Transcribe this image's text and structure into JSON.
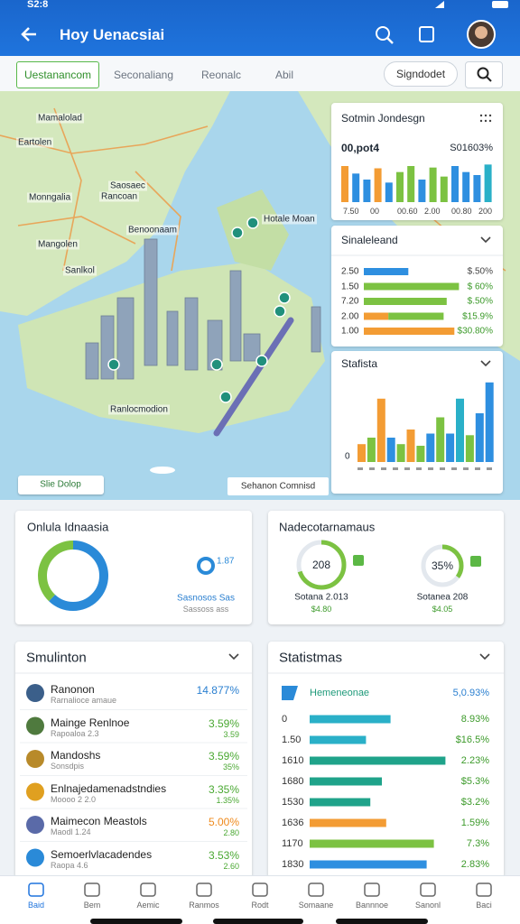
{
  "status_bar": {
    "time": "S2:8"
  },
  "app_bar": {
    "title": "Hoy Uenacsiai"
  },
  "tabs": {
    "items": [
      "Uestanancom",
      "Seconaliang",
      "Reonalc",
      "Abil"
    ],
    "active": 0,
    "button": "Signdodet"
  },
  "map": {
    "labels": [
      "Mamalolad",
      "Eartolen",
      "Monngalia",
      "Rancoan",
      "Mangolen",
      "Hotale Moan",
      "Benoonaam",
      "Ranlocmodion",
      "Sanlkol",
      "Saosaec"
    ],
    "zoom_chip": "Slie Dolop",
    "footer_chip": "Sehanon Comnisd"
  },
  "summary_panel": {
    "title": "Sotmin Jondesgn",
    "value_left": "00,pot4",
    "value_right": "S01603%",
    "ylim": [
      0,
      60
    ],
    "bars": [
      48,
      38,
      30,
      45,
      26,
      40,
      48,
      30,
      46,
      34,
      48,
      40,
      36,
      50
    ],
    "colors": [
      "#f39c34",
      "#2e8fe0",
      "#2e8fe0",
      "#f39c34",
      "#2e8fe0",
      "#7cc242",
      "#7cc242",
      "#2e8fe0",
      "#7cc242",
      "#7cc242",
      "#2e8fe0",
      "#2e8fe0",
      "#2e8fe0",
      "#2ab0c8"
    ],
    "tick_labels": [
      "7.50",
      "00",
      "00.60",
      "2.00",
      "00.80",
      "200"
    ]
  },
  "breakdown_panel": {
    "title": "Sinaleleand",
    "xlim": [
      0,
      100
    ],
    "rows": [
      {
        "label": "2.50",
        "value": "$.50%",
        "segments": [
          {
            "value": 29,
            "color": "#2e8fe0"
          }
        ]
      },
      {
        "label": "1.50",
        "value": "$ 60%",
        "segments": [
          {
            "value": 62,
            "color": "#7cc242"
          }
        ]
      },
      {
        "label": "7.20",
        "value": "$.50%",
        "segments": [
          {
            "value": 54,
            "color": "#7cc242"
          }
        ]
      },
      {
        "label": "2.00",
        "value": "$15.9%",
        "segments": [
          {
            "value": 16,
            "color": "#f39c34"
          },
          {
            "value": 36,
            "color": "#7cc242"
          }
        ]
      },
      {
        "label": "1.00",
        "value": "$30.80%",
        "segments": [
          {
            "value": 59,
            "color": "#f39c34"
          }
        ]
      }
    ]
  },
  "stats_panel": {
    "title": "Stafista",
    "y_label": "0",
    "ylim": [
      0,
      100
    ],
    "bars": [
      22,
      30,
      78,
      30,
      22,
      40,
      20,
      35,
      55,
      35,
      78,
      33,
      60,
      98
    ],
    "colors": [
      "#f39c34",
      "#7cc242",
      "#f39c34",
      "#2e8fe0",
      "#7cc242",
      "#f39c34",
      "#7cc242",
      "#2e8fe0",
      "#7cc242",
      "#2e8fe0",
      "#2ab0c8",
      "#7cc242",
      "#2e8fe0",
      "#2e8fe0"
    ]
  },
  "overview_card": {
    "title": "Onlula Idnaasia",
    "donut": [
      {
        "value": 62,
        "color": "#2a8ad8"
      },
      {
        "value": 38,
        "color": "#7cc242"
      }
    ],
    "badge": "1.87",
    "caption": "Sasnosos Sas",
    "sub_caption": "Sassoss ass"
  },
  "gauges_card": {
    "title": "Nadecotarnamaus",
    "gauges": [
      {
        "value": "208",
        "percent": 70,
        "color": "#7cc242",
        "caption": "Sotana 2.013",
        "amount": "$4.80"
      },
      {
        "value": "35%",
        "percent": 35,
        "color": "#7cc242",
        "caption": "Sotanea 208",
        "amount": "$4.05"
      }
    ]
  },
  "simulation_card": {
    "title": "Smulinton",
    "rows": [
      {
        "name": "Ranonon",
        "sub": "Rarnalioce amaue",
        "value": "14.877%",
        "sub_value": "",
        "color": "#2a7fd0"
      },
      {
        "name": "Mainge Renlnoe",
        "sub": "Rapoaloa 2.3",
        "value": "3.59%",
        "sub_value": "3.59",
        "color": "#4aa832"
      },
      {
        "name": "Mandoshs",
        "sub": "Sonsdpis",
        "value": "3.59%",
        "sub_value": "35%",
        "color": "#4aa832"
      },
      {
        "name": "Enlnajedamenadstndies",
        "sub": "Moooo 2 2.0",
        "value": "3.35%",
        "sub_value": "1.35%",
        "color": "#4aa832"
      },
      {
        "name": "Maimecon Meastols",
        "sub": "Maodl 1.24",
        "value": "5.00%",
        "sub_value": "2.80",
        "color": "#ef8a1c"
      },
      {
        "name": "Semoerlvlacadendes",
        "sub": "Raopa 4.6",
        "value": "3.53%",
        "sub_value": "2.60",
        "color": "#4aa832"
      }
    ]
  },
  "statistics_card": {
    "title": "Statistmas",
    "header_label": "Hemeneonae",
    "header_value": "5,0.93%",
    "xlim": [
      0,
      100
    ],
    "rows": [
      {
        "label": "0",
        "value": "8.93%",
        "bar": 56,
        "color": "#2ab0c8"
      },
      {
        "label": "1.50",
        "value": "$16.5%",
        "bar": 39,
        "color": "#2ab0c8"
      },
      {
        "label": "1610",
        "value": "2.23%",
        "bar": 94,
        "color": "#1fa38a"
      },
      {
        "label": "1680",
        "value": "$5.3%",
        "bar": 50,
        "color": "#1fa38a"
      },
      {
        "label": "1530",
        "value": "$3.2%",
        "bar": 42,
        "color": "#1fa38a"
      },
      {
        "label": "1636",
        "value": "1.59%",
        "bar": 53,
        "color": "#f39c34"
      },
      {
        "label": "1170",
        "value": "7.3%",
        "bar": 86,
        "color": "#7cc242"
      },
      {
        "label": "1830",
        "value": "2.83%",
        "bar": 81,
        "color": "#2e8fe0"
      }
    ]
  },
  "bottom_nav": {
    "items": [
      "Baid",
      "Bem",
      "Aemic",
      "Ranmos",
      "Rodt",
      "Somaane",
      "Bannnoe",
      "Sanonl",
      "Baci"
    ],
    "active": 0
  }
}
